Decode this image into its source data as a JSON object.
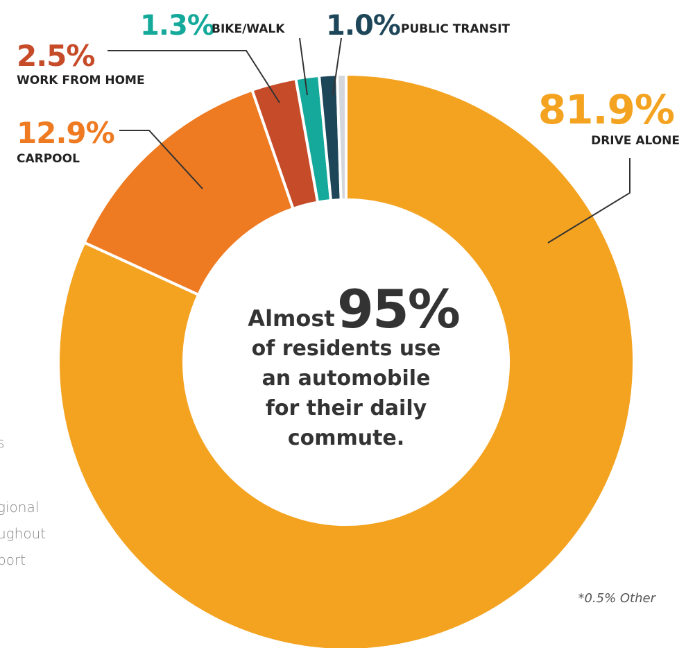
{
  "chart_data": {
    "type": "donut",
    "categories": [
      "DRIVE ALONE",
      "CARPOOL",
      "WORK FROM HOME",
      "BIKE/WALK",
      "PUBLIC TRANSIT",
      null
    ],
    "values": [
      81.9,
      12.9,
      2.5,
      1.3,
      1.0,
      0.5
    ],
    "value_labels": [
      "81.9%",
      "12.9%",
      "2.5%",
      "1.3%",
      "1.0%",
      "*0.5% Other"
    ],
    "colors": [
      "#F4A320",
      "#EE7B22",
      "#C64B28",
      "#14A99A",
      "#1E4659",
      "#D3D7DB"
    ],
    "center_text": {
      "lead": "Almost",
      "highlight": "95%",
      "lines": [
        "of residents use",
        "an automobile",
        "for their daily",
        "commute."
      ]
    },
    "side_text": [
      "s",
      "gional",
      "ughout",
      "port"
    ]
  }
}
